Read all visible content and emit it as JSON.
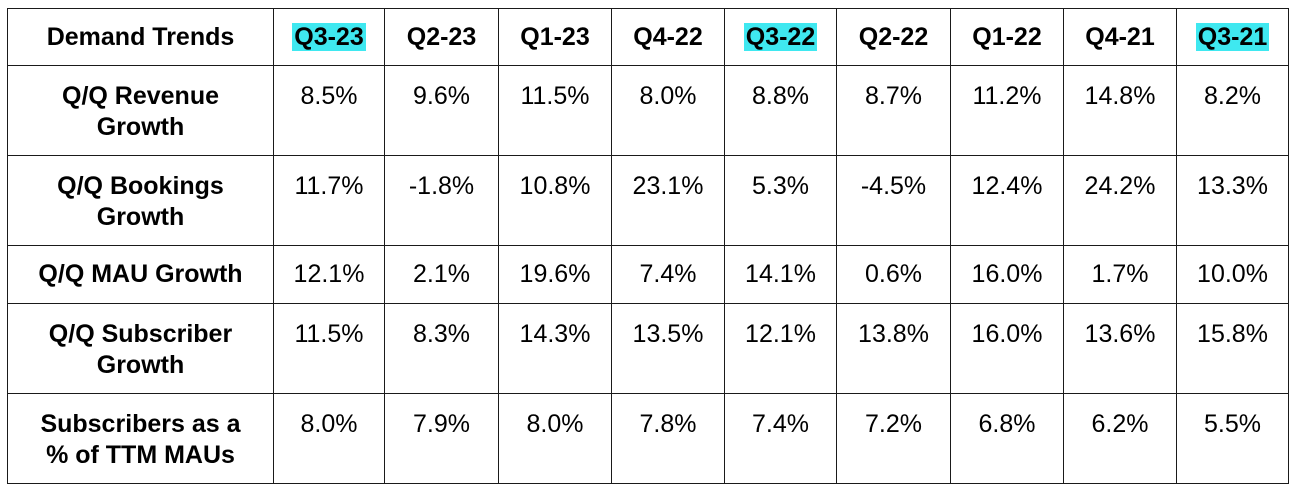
{
  "table": {
    "corner_label": "Demand Trends",
    "columns": [
      {
        "label": "Q3-23",
        "highlight": true
      },
      {
        "label": "Q2-23",
        "highlight": false
      },
      {
        "label": "Q1-23",
        "highlight": false
      },
      {
        "label": "Q4-22",
        "highlight": false
      },
      {
        "label": "Q3-22",
        "highlight": true
      },
      {
        "label": "Q2-22",
        "highlight": false
      },
      {
        "label": "Q1-22",
        "highlight": false
      },
      {
        "label": "Q4-21",
        "highlight": false
      },
      {
        "label": "Q3-21",
        "highlight": true
      }
    ],
    "highlight_color": "#3fe8f0",
    "rows": [
      {
        "label_lines": [
          "Q/Q Revenue",
          "Growth"
        ],
        "values": [
          "8.5%",
          "9.6%",
          "11.5%",
          "8.0%",
          "8.8%",
          "8.7%",
          "11.2%",
          "14.8%",
          "8.2%"
        ]
      },
      {
        "label_lines": [
          "Q/Q Bookings",
          "Growth"
        ],
        "values": [
          "11.7%",
          "-1.8%",
          "10.8%",
          "23.1%",
          "5.3%",
          "-4.5%",
          "12.4%",
          "24.2%",
          "13.3%"
        ]
      },
      {
        "label_lines": [
          "Q/Q MAU Growth"
        ],
        "values": [
          "12.1%",
          "2.1%",
          "19.6%",
          "7.4%",
          "14.1%",
          "0.6%",
          "16.0%",
          "1.7%",
          "10.0%"
        ]
      },
      {
        "label_lines": [
          "Q/Q Subscriber",
          "Growth"
        ],
        "values": [
          "11.5%",
          "8.3%",
          "14.3%",
          "13.5%",
          "12.1%",
          "13.8%",
          "16.0%",
          "13.6%",
          "15.8%"
        ]
      },
      {
        "label_lines": [
          "Subscribers as a",
          "% of TTM MAUs"
        ],
        "values": [
          "8.0%",
          "7.9%",
          "8.0%",
          "7.8%",
          "7.4%",
          "7.2%",
          "6.8%",
          "6.2%",
          "5.5%"
        ]
      }
    ]
  }
}
